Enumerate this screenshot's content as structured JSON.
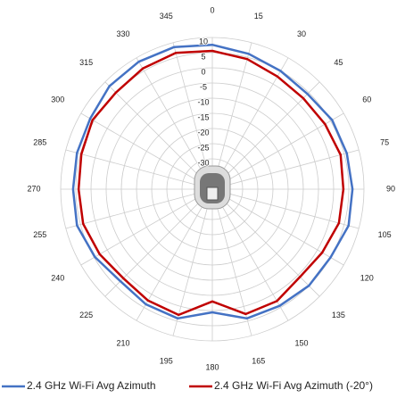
{
  "chart_data": {
    "type": "polar",
    "theta": [
      0,
      15,
      30,
      45,
      60,
      75,
      90,
      105,
      120,
      135,
      150,
      165,
      180,
      195,
      210,
      225,
      240,
      255,
      270,
      285,
      300,
      315,
      330,
      345
    ],
    "rlim": [
      -40,
      10
    ],
    "rticks": [
      10,
      5,
      0,
      -5,
      -10,
      -15,
      -20,
      -25,
      -30
    ],
    "grid": true,
    "legend": "bottom",
    "series": [
      {
        "name": "2.4 GHz Wi-Fi Avg Azimuth",
        "color": "#4472c4",
        "values": [
          7.6,
          6.2,
          5,
          4.4,
          5.6,
          5.9,
          6.2,
          6.5,
          5,
          5,
          4.4,
          4.1,
          0.6,
          4.1,
          3.8,
          2.9,
          4.7,
          6.2,
          5.9,
          6.2,
          6.5,
          8,
          8.5,
          8.5
        ]
      },
      {
        "name": "2.4 GHz Wi-Fi Avg Azimuth (-20°)",
        "color": "#c00000",
        "values": [
          5.6,
          4.4,
          2.9,
          2.4,
          2.9,
          3.8,
          3.2,
          3.2,
          1.8,
          0.9,
          2.6,
          2.6,
          -3,
          2.9,
          2.4,
          1.5,
          2.9,
          4.1,
          4.1,
          4.7,
          5.6,
          5,
          5.9,
          6.5
        ]
      }
    ]
  }
}
